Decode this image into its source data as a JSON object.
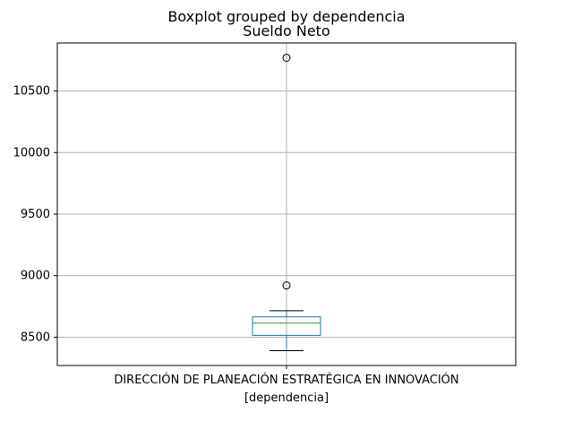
{
  "chart_data": {
    "type": "box",
    "suptitle": "Boxplot grouped by dependencia",
    "title": "Sueldo Neto",
    "xlabel": "[dependencia]",
    "ylabel": "",
    "categories": [
      "DIRECCIÓN DE PLANEACIÓN ESTRATÉGICA EN INNOVACIÓN"
    ],
    "ylim": [
      8270,
      10890
    ],
    "yticks": [
      8500,
      9000,
      9500,
      10000,
      10500
    ],
    "grid": true,
    "boxes": [
      {
        "category": "DIRECCIÓN DE PLANEACIÓN ESTRATÉGICA EN INNOVACIÓN",
        "whisker_low": 8390,
        "q1": 8515,
        "median": 8615,
        "q3": 8665,
        "whisker_high": 8715,
        "outliers": [
          8920,
          10770
        ]
      }
    ],
    "colors": {
      "box": "#1f77b4",
      "median": "#2ca02c",
      "whisker": "#1f77b4",
      "cap": "#000000",
      "grid": "#b0b0b0",
      "outlier": "#000000"
    }
  }
}
